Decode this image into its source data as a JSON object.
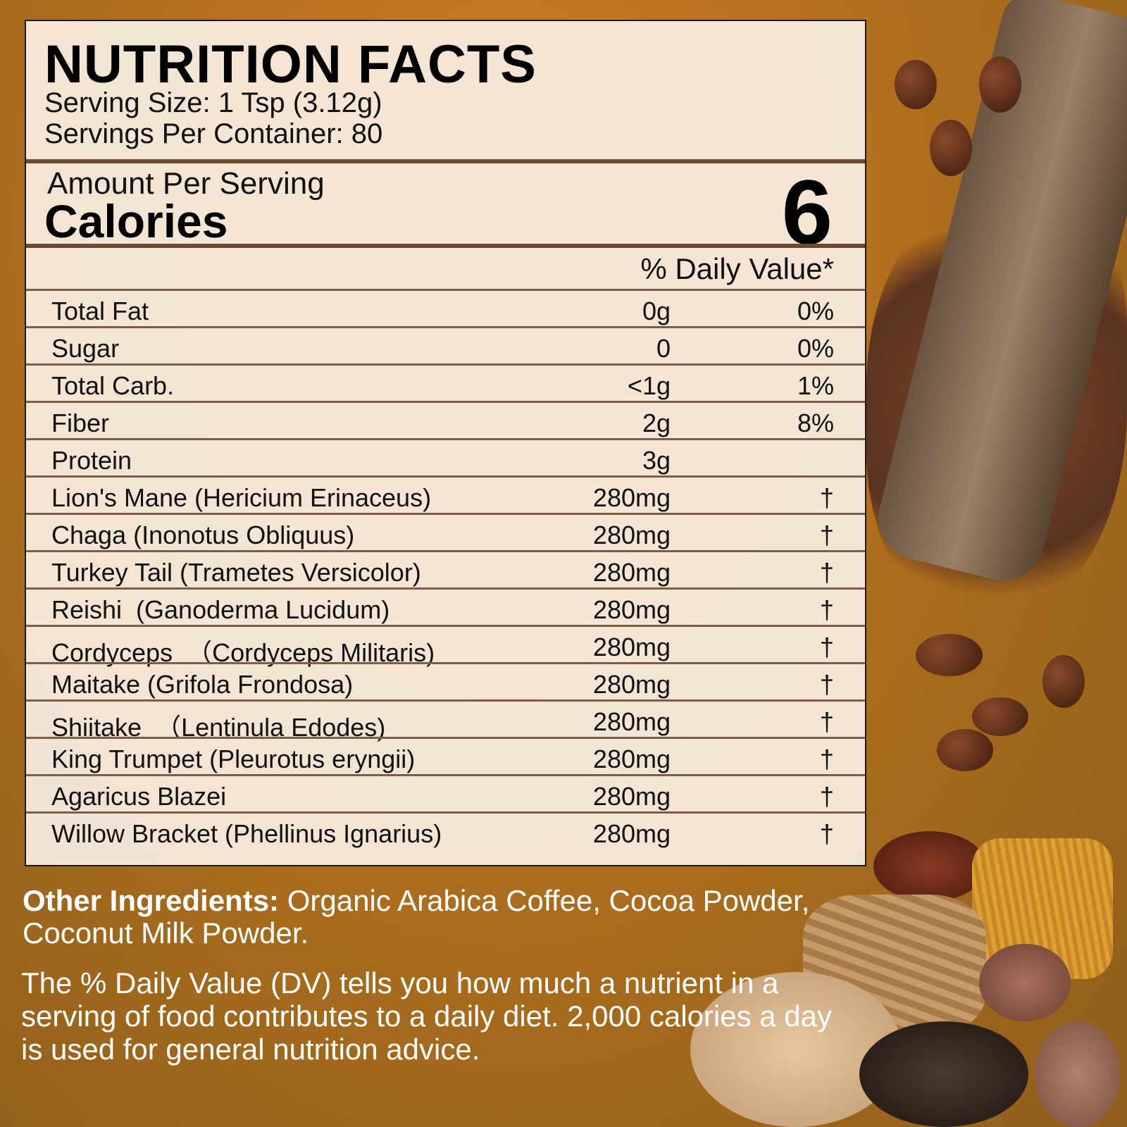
{
  "label": {
    "title": "NUTRITION FACTS",
    "serving_size": "Serving Size: 1 Tsp (3.12g)",
    "servings_per_container": "Servings Per Container: 80",
    "amount_per_serving": "Amount Per Serving",
    "calories_label": "Calories",
    "calories_value": "6",
    "daily_value_header": "% Daily Value*",
    "rows": [
      {
        "name": "Total Fat",
        "amount": "0g",
        "dv": "0%"
      },
      {
        "name": "Sugar",
        "amount": "0",
        "dv": "0%"
      },
      {
        "name": "Total Carb.",
        "amount": "<1g",
        "dv": "1%"
      },
      {
        "name": "Fiber",
        "amount": "2g",
        "dv": "8%"
      },
      {
        "name": "Protein",
        "amount": "3g",
        "dv": ""
      },
      {
        "name": "Lion's Mane (Hericium Erinaceus)",
        "amount": "280mg",
        "dv": "†"
      },
      {
        "name": "Chaga (Inonotus Obliquus)",
        "amount": "280mg",
        "dv": "†"
      },
      {
        "name": "Turkey Tail (Trametes Versicolor)",
        "amount": "280mg",
        "dv": "†"
      },
      {
        "name": "Reishi  (Ganoderma Lucidum)",
        "amount": "280mg",
        "dv": "†"
      },
      {
        "name": "Cordyceps  （Cordyceps Militaris)",
        "amount": "280mg",
        "dv": "†"
      },
      {
        "name": "Maitake (Grifola Frondosa)",
        "amount": "280mg",
        "dv": "†"
      },
      {
        "name": "Shiitake  （Lentinula Edodes)",
        "amount": "280mg",
        "dv": "†"
      },
      {
        "name": "King Trumpet (Pleurotus eryngii)",
        "amount": "280mg",
        "dv": "†"
      },
      {
        "name": "Agaricus Blazei",
        "amount": "280mg",
        "dv": "†"
      },
      {
        "name": "Willow Bracket (Phellinus Ignarius)",
        "amount": "280mg",
        "dv": "†"
      }
    ]
  },
  "other_ingredients": {
    "label": "Other Ingredients:",
    "text": " Organic Arabica Coffee, Cocoa Powder, Coconut Milk Powder."
  },
  "footnote": "The % Daily Value (DV) tells you how much a nutrient in a serving of food contributes to a daily diet. 2,000 calories a day is used for general nutrition advice.",
  "colors": {
    "background": "#b5701f",
    "panel": "#f7ebde",
    "divider": "#6b4a2e"
  }
}
